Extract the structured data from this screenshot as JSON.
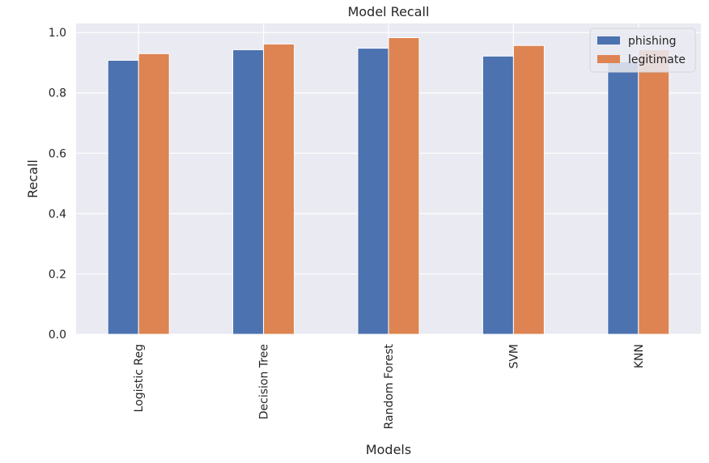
{
  "chart_data": {
    "type": "bar",
    "title": "Model Recall",
    "xlabel": "Models",
    "ylabel": "Recall",
    "categories": [
      "Logistic Reg",
      "Decision Tree",
      "Random Forest",
      "SVM",
      "KNN"
    ],
    "series": [
      {
        "name": "phishing",
        "values": [
          0.908,
          0.943,
          0.948,
          0.922,
          0.903
        ],
        "color": "#4c72b0"
      },
      {
        "name": "legitimate",
        "values": [
          0.93,
          0.962,
          0.983,
          0.957,
          0.943
        ],
        "color": "#dd8452"
      }
    ],
    "ylim": [
      0,
      1.03
    ],
    "yticks": [
      0.0,
      0.2,
      0.4,
      0.6,
      0.8,
      1.0
    ],
    "ytick_labels": [
      "0.0",
      "0.2",
      "0.4",
      "0.6",
      "0.8",
      "1.0"
    ],
    "grid": true,
    "legend": "top-right",
    "background_color": "#eaeaf2",
    "grid_color": "#ffffff"
  }
}
